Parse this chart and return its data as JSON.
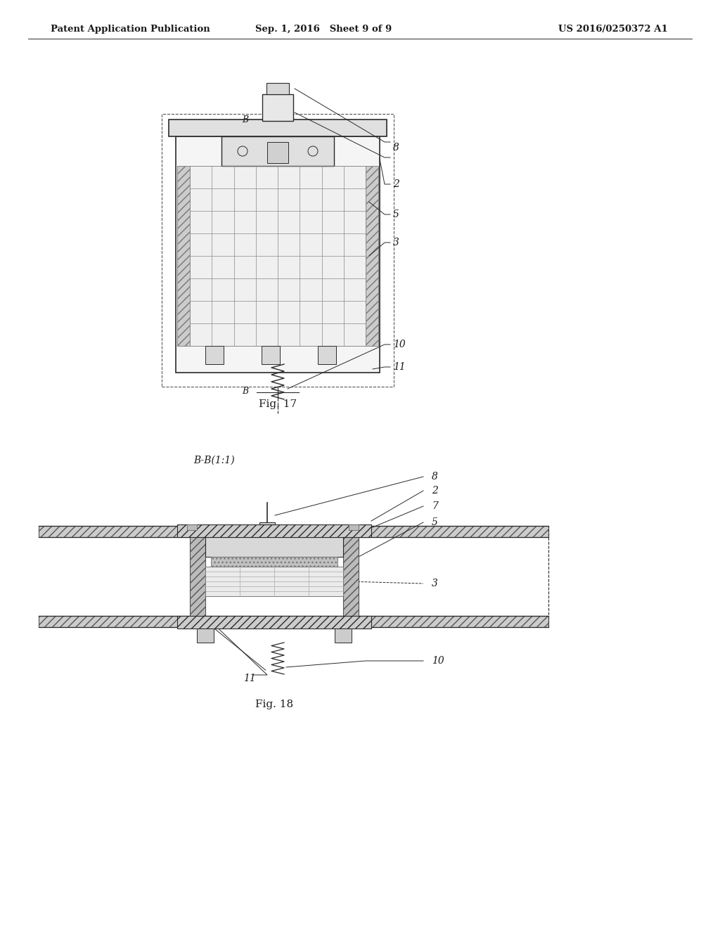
{
  "background_color": "#ffffff",
  "header": {
    "left": "Patent Application Publication",
    "center": "Sep. 1, 2016   Sheet 9 of 9",
    "right": "US 2016/0250372 A1"
  },
  "line_color": "#2a2a2a",
  "text_color": "#1a1a1a",
  "fig17_caption": "Fig. 17",
  "fig18_caption": "Fig. 18",
  "fig18_section": "B-B(1:1)"
}
